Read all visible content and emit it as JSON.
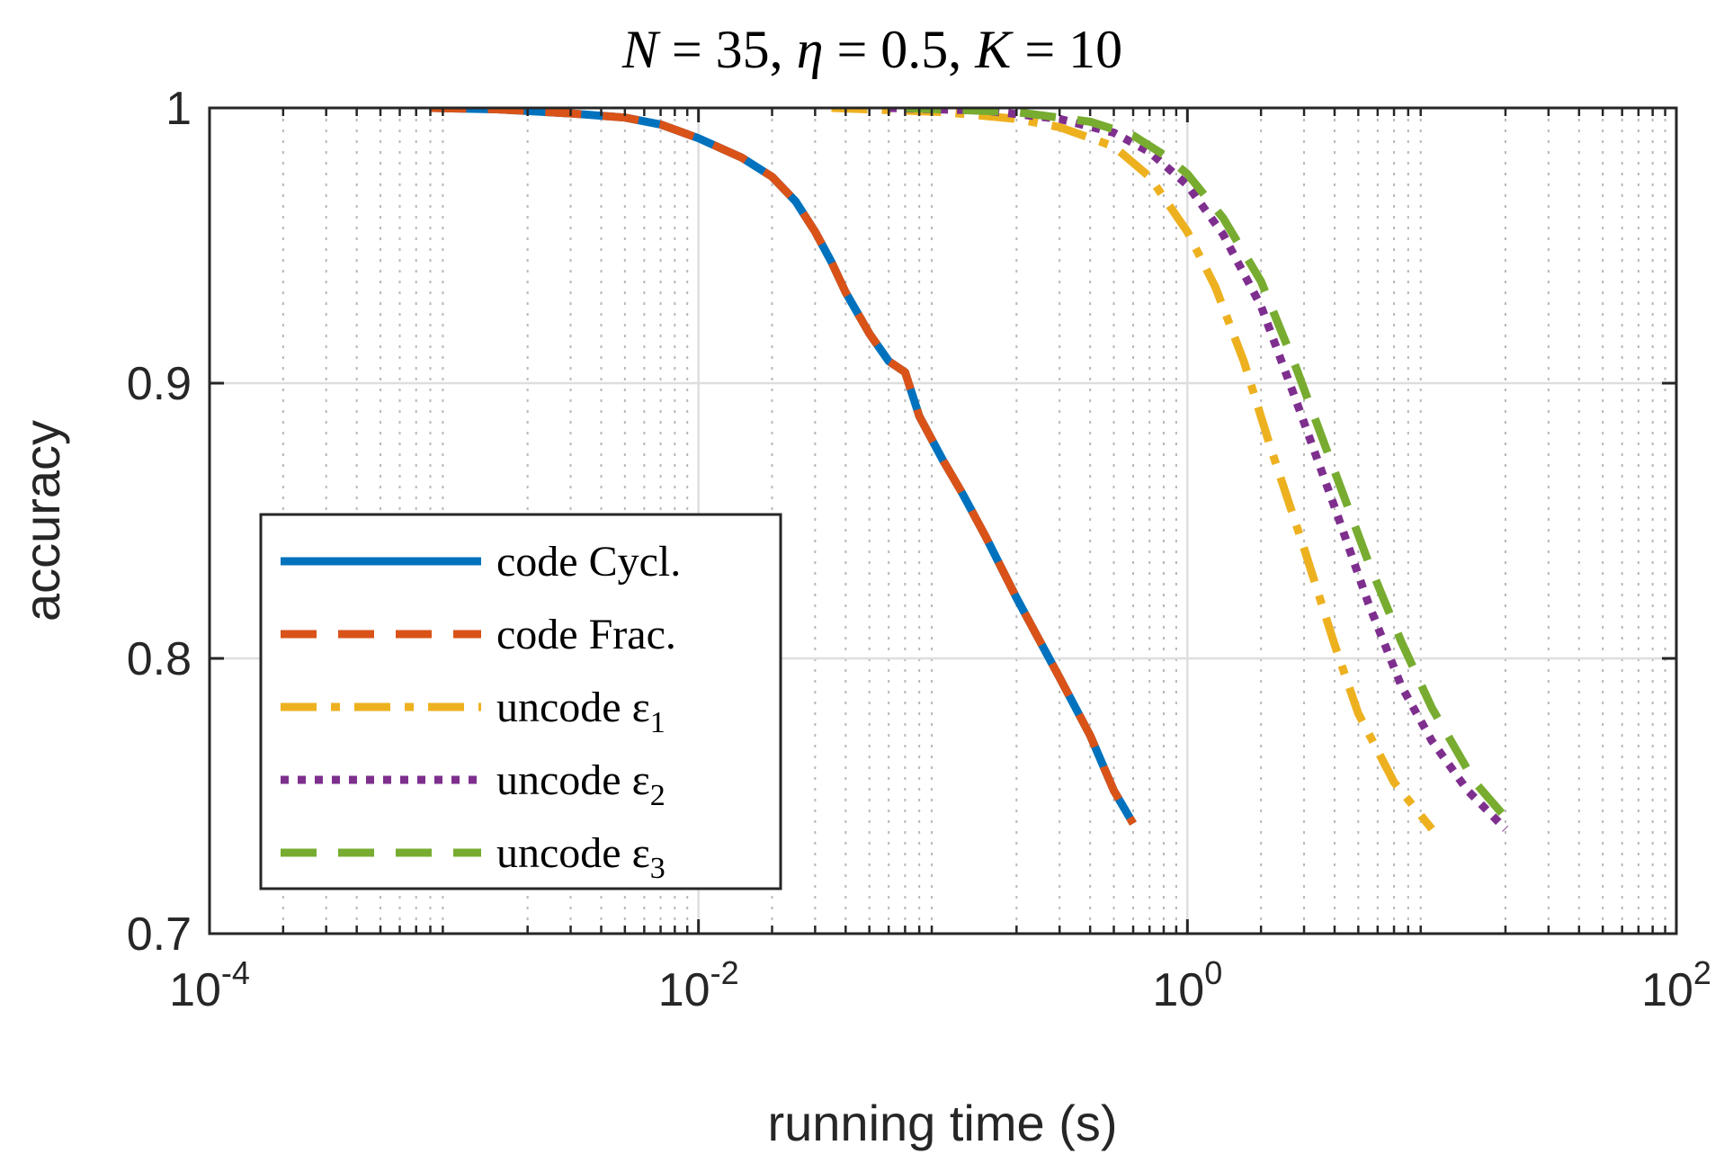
{
  "chart_data": {
    "type": "line",
    "title": "N = 35, η = 0.5, K = 10",
    "title_parts": {
      "n_var": "N",
      "n_val": " = 35, ",
      "eta_var": "η",
      "eta_val": " = 0.5, ",
      "k_var": "K",
      "k_val": " = 10"
    },
    "xlabel": "running time (s)",
    "ylabel": "accuracy",
    "xscale": "log",
    "xlim": [
      0.0001,
      100
    ],
    "ylim": [
      0.7,
      1.0
    ],
    "x_ticks": [
      0.0001,
      0.01,
      1,
      100
    ],
    "x_tick_labels": [
      {
        "base": "10",
        "exp": "-4"
      },
      {
        "base": "10",
        "exp": "-2"
      },
      {
        "base": "10",
        "exp": "0"
      },
      {
        "base": "10",
        "exp": "2"
      }
    ],
    "y_ticks": [
      0.7,
      0.8,
      0.9,
      1.0
    ],
    "y_tick_labels": [
      "0.7",
      "0.8",
      "0.9",
      "1"
    ],
    "grid": true,
    "minor_grid": true,
    "legend_position": "lower-left",
    "series": [
      {
        "name": "code Cycl.",
        "label_text": "code Cycl.",
        "sub": "",
        "color": "#0072BD",
        "style": "solid",
        "points": [
          [
            0.0008,
            1.0
          ],
          [
            0.0015,
            0.9995
          ],
          [
            0.003,
            0.998
          ],
          [
            0.005,
            0.9965
          ],
          [
            0.007,
            0.994
          ],
          [
            0.01,
            0.989
          ],
          [
            0.015,
            0.982
          ],
          [
            0.02,
            0.975
          ],
          [
            0.025,
            0.966
          ],
          [
            0.03,
            0.955
          ],
          [
            0.035,
            0.944
          ],
          [
            0.04,
            0.933
          ],
          [
            0.05,
            0.918
          ],
          [
            0.06,
            0.908
          ],
          [
            0.07,
            0.904
          ],
          [
            0.08,
            0.888
          ],
          [
            0.1,
            0.872
          ],
          [
            0.12,
            0.86
          ],
          [
            0.15,
            0.844
          ],
          [
            0.2,
            0.822
          ],
          [
            0.3,
            0.793
          ],
          [
            0.4,
            0.772
          ],
          [
            0.5,
            0.752
          ],
          [
            0.6,
            0.74
          ]
        ]
      },
      {
        "name": "code Frac.",
        "label_text": "code Frac.",
        "sub": "",
        "color": "#D95319",
        "style": "dashed",
        "points": [
          [
            0.0008,
            1.0
          ],
          [
            0.0015,
            0.9995
          ],
          [
            0.003,
            0.998
          ],
          [
            0.005,
            0.9965
          ],
          [
            0.007,
            0.994
          ],
          [
            0.01,
            0.989
          ],
          [
            0.015,
            0.982
          ],
          [
            0.02,
            0.975
          ],
          [
            0.025,
            0.966
          ],
          [
            0.03,
            0.955
          ],
          [
            0.035,
            0.944
          ],
          [
            0.04,
            0.933
          ],
          [
            0.05,
            0.918
          ],
          [
            0.06,
            0.908
          ],
          [
            0.07,
            0.904
          ],
          [
            0.08,
            0.888
          ],
          [
            0.1,
            0.872
          ],
          [
            0.12,
            0.86
          ],
          [
            0.15,
            0.844
          ],
          [
            0.2,
            0.822
          ],
          [
            0.3,
            0.793
          ],
          [
            0.4,
            0.772
          ],
          [
            0.5,
            0.752
          ],
          [
            0.6,
            0.74
          ]
        ]
      },
      {
        "name": "uncode ε1",
        "label_text": "uncode ε",
        "sub": "1",
        "color": "#EDB120",
        "style": "dashdot",
        "points": [
          [
            0.035,
            1.0
          ],
          [
            0.1,
            0.9985
          ],
          [
            0.2,
            0.996
          ],
          [
            0.3,
            0.993
          ],
          [
            0.5,
            0.986
          ],
          [
            0.7,
            0.975
          ],
          [
            1.0,
            0.955
          ],
          [
            1.3,
            0.935
          ],
          [
            1.7,
            0.908
          ],
          [
            2.2,
            0.876
          ],
          [
            3.0,
            0.84
          ],
          [
            4.0,
            0.805
          ],
          [
            5.0,
            0.78
          ],
          [
            7.0,
            0.755
          ],
          [
            10.0,
            0.738
          ]
        ]
      },
      {
        "name": "uncode ε2",
        "label_text": "uncode ε",
        "sub": "2",
        "color": "#7E2F8E",
        "style": "dotted",
        "points": [
          [
            0.06,
            1.0
          ],
          [
            0.15,
            0.999
          ],
          [
            0.3,
            0.996
          ],
          [
            0.5,
            0.991
          ],
          [
            0.7,
            0.984
          ],
          [
            1.0,
            0.972
          ],
          [
            1.4,
            0.954
          ],
          [
            2.0,
            0.928
          ],
          [
            2.8,
            0.893
          ],
          [
            4.0,
            0.855
          ],
          [
            5.5,
            0.82
          ],
          [
            7.5,
            0.79
          ],
          [
            10.0,
            0.77
          ],
          [
            14.0,
            0.752
          ],
          [
            20.0,
            0.738
          ]
        ]
      },
      {
        "name": "uncode ε3",
        "label_text": "uncode ε",
        "sub": "3",
        "color": "#77AC30",
        "style": "dashed",
        "points": [
          [
            0.07,
            1.0
          ],
          [
            0.2,
            0.9985
          ],
          [
            0.4,
            0.995
          ],
          [
            0.6,
            0.99
          ],
          [
            0.8,
            0.983
          ],
          [
            1.0,
            0.976
          ],
          [
            1.4,
            0.96
          ],
          [
            2.0,
            0.937
          ],
          [
            2.8,
            0.905
          ],
          [
            4.0,
            0.868
          ],
          [
            5.5,
            0.835
          ],
          [
            7.5,
            0.806
          ],
          [
            10.0,
            0.782
          ],
          [
            15.0,
            0.755
          ],
          [
            22.0,
            0.738
          ]
        ]
      }
    ]
  }
}
